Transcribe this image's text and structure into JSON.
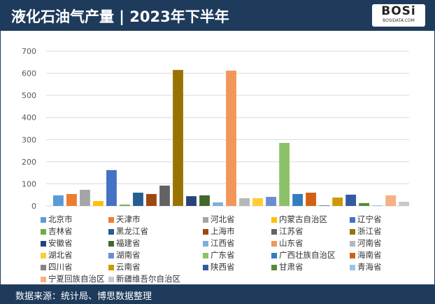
{
  "header": {
    "title": "液化石油气产量 | 2023年下半年",
    "logo_text": "BOSi",
    "logo_sub": "BOSIDATA.COM"
  },
  "footer": {
    "source": "数据来源：统计局、博思数据整理"
  },
  "chart_data": {
    "type": "bar",
    "title": "",
    "xlabel": "",
    "ylabel": "",
    "ylim": [
      0,
      700
    ],
    "yticks": [
      0,
      100,
      200,
      300,
      400,
      500,
      600,
      700
    ],
    "grid": true,
    "legend_position": "bottom",
    "series": [
      {
        "name": "北京市",
        "value": 48,
        "color": "#5B9BD5"
      },
      {
        "name": "天津市",
        "value": 54,
        "color": "#ED7D31"
      },
      {
        "name": "河北省",
        "value": 73,
        "color": "#A5A5A5"
      },
      {
        "name": "内蒙古自治区",
        "value": 22,
        "color": "#FFC000"
      },
      {
        "name": "辽宁省",
        "value": 162,
        "color": "#4472C4"
      },
      {
        "name": "吉林省",
        "value": 6,
        "color": "#70AD47"
      },
      {
        "name": "黑龙江省",
        "value": 60,
        "color": "#255E91"
      },
      {
        "name": "上海市",
        "value": 54,
        "color": "#9E480E"
      },
      {
        "name": "江苏省",
        "value": 92,
        "color": "#636363"
      },
      {
        "name": "浙江省",
        "value": 615,
        "color": "#997300"
      },
      {
        "name": "安徽省",
        "value": 44,
        "color": "#264478"
      },
      {
        "name": "福建省",
        "value": 48,
        "color": "#43682B"
      },
      {
        "name": "江西省",
        "value": 16,
        "color": "#7CAFDD"
      },
      {
        "name": "山东省",
        "value": 612,
        "color": "#F1975A"
      },
      {
        "name": "河南省",
        "value": 35,
        "color": "#B7B7B7"
      },
      {
        "name": "湖北省",
        "value": 35,
        "color": "#FFCD33"
      },
      {
        "name": "湖南省",
        "value": 41,
        "color": "#698ED0"
      },
      {
        "name": "广东省",
        "value": 285,
        "color": "#8CC168"
      },
      {
        "name": "广西壮族自治区",
        "value": 54,
        "color": "#327DC2"
      },
      {
        "name": "海南省",
        "value": 60,
        "color": "#D26012"
      },
      {
        "name": "四川省",
        "value": 3,
        "color": "#848484"
      },
      {
        "name": "云南省",
        "value": 38,
        "color": "#CC9A00"
      },
      {
        "name": "陕西省",
        "value": 51,
        "color": "#335AA1"
      },
      {
        "name": "甘肃省",
        "value": 13,
        "color": "#5A8A39"
      },
      {
        "name": "青海省",
        "value": 3,
        "color": "#9DC3E6"
      },
      {
        "name": "宁夏回族自治区",
        "value": 48,
        "color": "#F4B183"
      },
      {
        "name": "新疆维吾尔自治区",
        "value": 19,
        "color": "#C9C9C9"
      }
    ]
  }
}
